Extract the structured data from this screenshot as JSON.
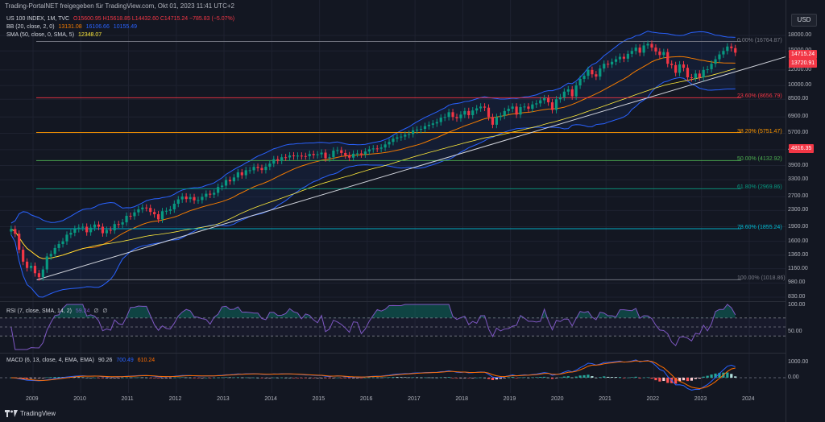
{
  "header": {
    "published": "Trading-PortalNET freigegeben für TradingView.com, Okt 01, 2023 11:41 UTC+2"
  },
  "legend": {
    "symbol": "US 100 INDEX, 1M, TVC",
    "ohlc": "O15600.95 H15618.85 L14432.60 C14715.24 −785.83 (−5.07%)",
    "bb_label": "BB (20, close, 2, 0)",
    "bb_values": [
      "13131.08",
      "16106.66",
      "10155.49"
    ],
    "sma_label": "SMA (50, close, 0, SMA, 5)",
    "sma_value": "12348.07",
    "rsi_label": "RSI (7, close, SMA, 14, 2)",
    "rsi_values": [
      "59.24",
      "∅",
      "∅"
    ],
    "macd_label": "MACD (6, 13, close, 4, EMA, EMA)",
    "macd_values": [
      "90.26",
      "700.49",
      "610.24"
    ]
  },
  "currency": "USD",
  "price_axis": [
    "18000.00",
    "15000.00",
    "12000.00",
    "10000.00",
    "8500.00",
    "6900.00",
    "5700.00",
    "4700.00",
    "3900.00",
    "3300.00",
    "2700.00",
    "2300.00",
    "1900.00",
    "1600.00",
    "1360.00",
    "1160.00",
    "980.00",
    "830.00"
  ],
  "price_badges": {
    "last": "14715.24",
    "bb_basis": "13720.91",
    "cursor": "4816.35"
  },
  "fib_levels": [
    {
      "label": "0.00% (16764.87)",
      "value": 16764.87,
      "color": "#787b86"
    },
    {
      "label": "23.60% (8656.79)",
      "value": 8656.79,
      "color": "#f23645"
    },
    {
      "label": "38.20% (5751.47)",
      "value": 5751.47,
      "color": "#ff9800"
    },
    {
      "label": "50.00% (4132.92)",
      "value": 4132.92,
      "color": "#4caf50"
    },
    {
      "label": "61.80% (2969.86)",
      "value": 2969.86,
      "color": "#089981"
    },
    {
      "label": "78.60% (1855.24)",
      "value": 1855.24,
      "color": "#00bcd4"
    },
    {
      "label": "100.00% (1018.86)",
      "value": 1018.86,
      "color": "#787b86"
    }
  ],
  "rsi_axis": [
    "100.00",
    "50.00"
  ],
  "macd_axis": [
    "1000.00",
    "0.00"
  ],
  "time_axis": [
    "2009",
    "2010",
    "2011",
    "2012",
    "2013",
    "2014",
    "2015",
    "2016",
    "2017",
    "2018",
    "2019",
    "2020",
    "2021",
    "2022",
    "2023",
    "2024"
  ],
  "footer": {
    "logo": "TradingView"
  },
  "colors": {
    "up": "#089981",
    "down": "#f23645",
    "bg": "#131722",
    "bb_band": "#2962ff",
    "bb_basis": "#f57c00",
    "sma": "#ffeb3b",
    "rsi": "#7e57c2",
    "trendline": "#d1d4dc",
    "macd": "#2962ff",
    "signal": "#ff6d00"
  },
  "chart_data": {
    "type": "candlestick",
    "interval": "1M",
    "scale": "log",
    "start": "2008-07",
    "closes": [
      1850,
      1750,
      1450,
      1260,
      1170,
      1200,
      1100,
      1050,
      1150,
      1340,
      1380,
      1480,
      1550,
      1600,
      1730,
      1770,
      1850,
      1880,
      1900,
      1780,
      1880,
      1950,
      1900,
      1760,
      1830,
      1820,
      1960,
      1950,
      2000,
      2160,
      2150,
      2250,
      2330,
      2380,
      2370,
      2260,
      2200,
      2070,
      2280,
      2290,
      2330,
      2490,
      2620,
      2710,
      2630,
      2690,
      2590,
      2600,
      2700,
      2800,
      2770,
      2830,
      3030,
      3080,
      3290,
      3240,
      3390,
      3600,
      3480,
      3690,
      3690,
      3840,
      3790,
      3700,
      3850,
      3990,
      4200,
      4130,
      4300,
      4290,
      4390,
      4350,
      4380,
      4360,
      4350,
      4470,
      4410,
      4450,
      4540,
      4250,
      4300,
      4650,
      4670,
      4520,
      4400,
      4280,
      4480,
      4500,
      4450,
      4600,
      4720,
      4770,
      4750,
      4820,
      5000,
      5150,
      5350,
      5430,
      5480,
      5600,
      5650,
      5900,
      5950,
      6000,
      6200,
      6300,
      6400,
      6500,
      6850,
      6900,
      7300,
      6900,
      6800,
      7100,
      7400,
      7050,
      7450,
      7640,
      7800,
      7700,
      6900,
      6300,
      6900,
      7000,
      7400,
      7600,
      7800,
      7100,
      7750,
      7800,
      7600,
      8000,
      8100,
      8400,
      8600,
      8200,
      7500,
      8500,
      8700,
      9300,
      9550,
      8800,
      10000,
      10800,
      11200,
      12000,
      11400,
      11100,
      12200,
      12900,
      12800,
      13200,
      13600,
      14000,
      13700,
      14500,
      15000,
      15600,
      14700,
      16000,
      16300,
      15600,
      14900,
      14300,
      14800,
      12900,
      12700,
      11600,
      12800,
      12300,
      11000,
      10900,
      11500,
      11000,
      12000,
      12100,
      12900,
      13600,
      14400,
      15000,
      15800,
      15500,
      14700
    ],
    "fib_levels": [
      16764.87,
      8656.79,
      5751.47,
      4132.92,
      2969.86,
      1855.24,
      1018.86
    ]
  }
}
